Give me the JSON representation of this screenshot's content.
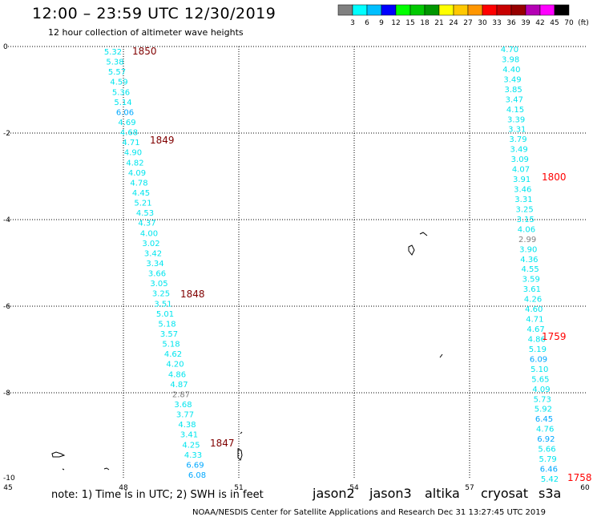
{
  "header": {
    "title": "12:00 – 23:59 UTC 12/30/2019",
    "subtitle": "12 hour collection of altimeter wave heights"
  },
  "legend": {
    "labels": [
      "3",
      "6",
      "9",
      "12",
      "15",
      "18",
      "21",
      "24",
      "27",
      "30",
      "33",
      "36",
      "39",
      "42",
      "45",
      "70",
      "(ft)"
    ],
    "colors": [
      "#808080",
      "#00ffff",
      "#00bfff",
      "#0000ff",
      "#00ff00",
      "#00c800",
      "#009600",
      "#ffff00",
      "#ffc800",
      "#ff9600",
      "#ff0000",
      "#c80000",
      "#960000",
      "#b400b4",
      "#ff00ff",
      "#000000"
    ]
  },
  "axes": {
    "x_ticks": [
      "45",
      "48",
      "51",
      "54",
      "57",
      "60"
    ],
    "y_ticks": [
      "0",
      "-2",
      "-4",
      "-6",
      "-8",
      "-10"
    ]
  },
  "tracks": [
    {
      "values": [
        "5.32",
        "5.38",
        "5.57",
        "4.59",
        "5.36",
        "5.14",
        "6.06",
        "4.69",
        "4.68",
        "4.71",
        "4.90",
        "4.82",
        "4.09",
        "4.78",
        "4.45",
        "5.21",
        "4.53",
        "4.37",
        "4.00",
        "3.02",
        "3.42",
        "3.34",
        "3.66",
        "3.05",
        "3.25",
        "3.51",
        "5.01",
        "5.18",
        "3.57",
        "5.18",
        "4.62",
        "4.20",
        "4.86",
        "4.87",
        "2.87",
        "3.68",
        "3.77",
        "4.38",
        "3.41",
        "4.25",
        "4.33",
        "6.69",
        "6.08"
      ]
    },
    {
      "values": [
        "4.70",
        "3.98",
        "4.40",
        "3.49",
        "3.85",
        "3.47",
        "4.15",
        "3.39",
        "3.31",
        "3.79",
        "3.49",
        "3.09",
        "4.07",
        "3.91",
        "3.46",
        "3.31",
        "3.25",
        "3.15",
        "4.06",
        "2.99",
        "3.90",
        "4.36",
        "4.55",
        "3.59",
        "3.61",
        "4.26",
        "4.60",
        "4.71",
        "4.67",
        "4.86",
        "5.19",
        "6.09",
        "5.10",
        "5.65",
        "4.09",
        "5.73",
        "5.92",
        "6.45",
        "4.76",
        "6.92",
        "5.66",
        "5.79",
        "6.46",
        "5.42"
      ]
    }
  ],
  "time_labels": [
    {
      "text": "1850",
      "color": "#800000"
    },
    {
      "text": "1849",
      "color": "#800000"
    },
    {
      "text": "1848",
      "color": "#800000"
    },
    {
      "text": "1847",
      "color": "#800000"
    },
    {
      "text": "1800",
      "color": "#ff0000"
    },
    {
      "text": "1759",
      "color": "#ff0000"
    },
    {
      "text": "1758",
      "color": "#ff0000"
    }
  ],
  "footer": {
    "note": "note:  1) Time is in UTC;  2) SWH is in feet",
    "satellites": [
      {
        "text": "jason2",
        "color": "#0000c8"
      },
      {
        "text": "jason3",
        "color": "#009600"
      },
      {
        "text": "altika",
        "color": "#ff9600"
      },
      {
        "text": "cryosat",
        "color": "#ff0000"
      },
      {
        "text": "s3a",
        "color": "#800000"
      }
    ],
    "credit": "NOAA/NESDIS Center for Satellite Applications and Research     Dec 31 13:27:45 UTC 2019"
  }
}
